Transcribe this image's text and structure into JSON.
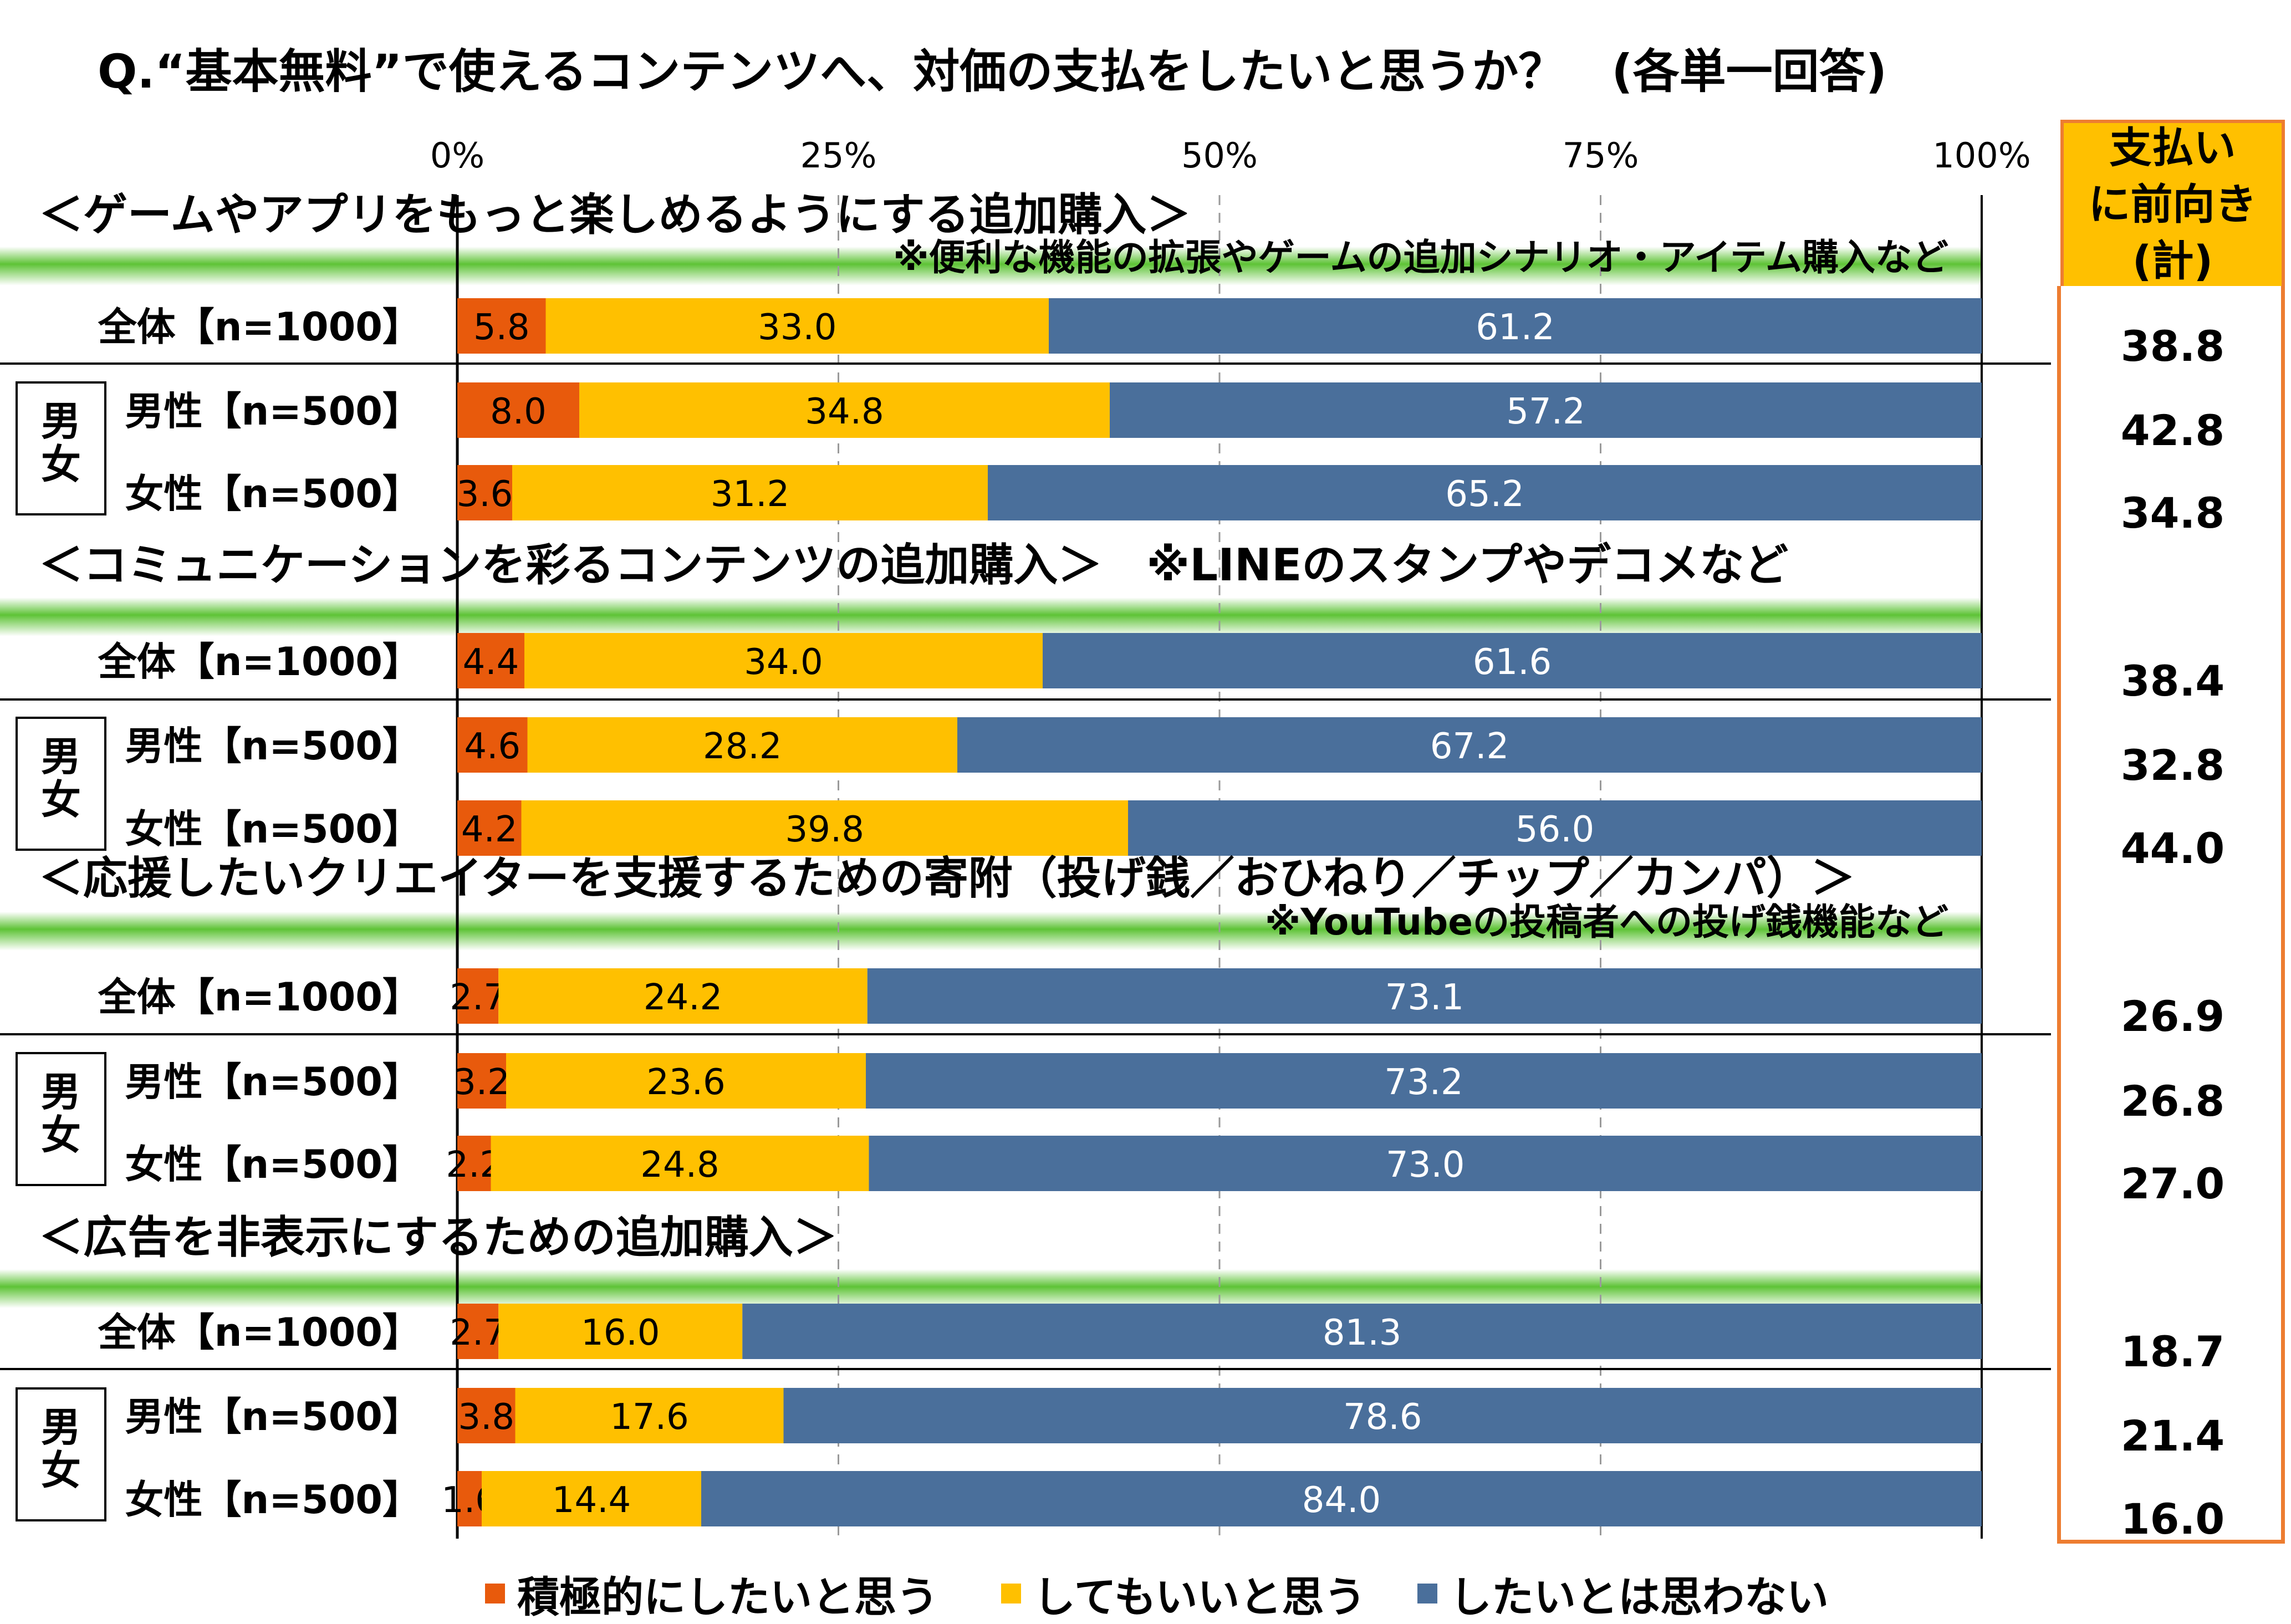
{
  "title": "Q.“基本無料”で使えるコンテンツへ、対価の支払をしたいと思うか？　(各単一回答)",
  "side_header": "支払い\nに前向き\n(計)",
  "colors": {
    "series": [
      "#e85a0c",
      "#ffc000",
      "#4a6f9b"
    ],
    "band": "#5ec336",
    "side_border": "#ed7d31",
    "side_fill": "#ffc000"
  },
  "chart_data": {
    "type": "bar",
    "orientation": "horizontal",
    "stacked": true,
    "xlim": [
      0,
      100
    ],
    "ticks": [
      "0%",
      "25%",
      "50%",
      "75%",
      "100%"
    ],
    "legend": [
      "積極的にしたいと思う",
      "してもいいと思う",
      "したいとは思わない"
    ],
    "legend_position": "bottom",
    "gender_label": "男\n女",
    "sections": [
      {
        "heading": "＜ゲームやアプリをもっと楽しめるようにする追加購入＞",
        "note": "※便利な機能の拡張やゲームの追加シナリオ・アイテム購入など",
        "rows": [
          {
            "label": "全体【n=1000】",
            "values": [
              5.8,
              33.0,
              61.2
            ],
            "total": "38.8"
          },
          {
            "label": "男性【n=500】",
            "values": [
              8.0,
              34.8,
              57.2
            ],
            "total": "42.8"
          },
          {
            "label": "女性【n=500】",
            "values": [
              3.6,
              31.2,
              65.2
            ],
            "total": "34.8"
          }
        ]
      },
      {
        "heading": "＜コミュニケーションを彩るコンテンツの追加購入＞　※LINEのスタンプやデコメなど",
        "note": "",
        "rows": [
          {
            "label": "全体【n=1000】",
            "values": [
              4.4,
              34.0,
              61.6
            ],
            "total": "38.4"
          },
          {
            "label": "男性【n=500】",
            "values": [
              4.6,
              28.2,
              67.2
            ],
            "total": "32.8"
          },
          {
            "label": "女性【n=500】",
            "values": [
              4.2,
              39.8,
              56.0
            ],
            "total": "44.0"
          }
        ]
      },
      {
        "heading": "＜応援したいクリエイターを支援するための寄附（投げ銭／おひねり／チップ／カンパ）＞",
        "note": "※YouTubeの投稿者への投げ銭機能など",
        "rows": [
          {
            "label": "全体【n=1000】",
            "values": [
              2.7,
              24.2,
              73.1
            ],
            "total": "26.9"
          },
          {
            "label": "男性【n=500】",
            "values": [
              3.2,
              23.6,
              73.2
            ],
            "total": "26.8"
          },
          {
            "label": "女性【n=500】",
            "values": [
              2.2,
              24.8,
              73.0
            ],
            "total": "27.0"
          }
        ]
      },
      {
        "heading": "＜広告を非表示にするための追加購入＞",
        "note": "",
        "rows": [
          {
            "label": "全体【n=1000】",
            "values": [
              2.7,
              16.0,
              81.3
            ],
            "total": "18.7"
          },
          {
            "label": "男性【n=500】",
            "values": [
              3.8,
              17.6,
              78.6
            ],
            "total": "21.4"
          },
          {
            "label": "女性【n=500】",
            "values": [
              1.6,
              14.4,
              84.0
            ],
            "total": "16.0"
          }
        ]
      }
    ]
  }
}
